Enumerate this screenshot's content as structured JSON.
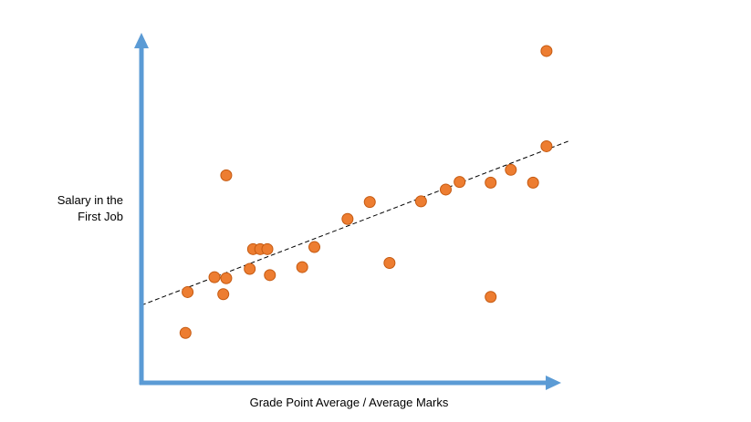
{
  "chart_data": {
    "type": "scatter",
    "title": "",
    "xlabel": "Grade Point Average / Average Marks",
    "ylabel_line1": "Salary in the",
    "ylabel_line2": "First Job",
    "ticks_shown": false,
    "grid": false,
    "legend": "none",
    "xlim": [
      0,
      100
    ],
    "ylim": [
      0,
      100
    ],
    "points": [
      {
        "x": 10.5,
        "y": 14.4
      },
      {
        "x": 11.0,
        "y": 26.2
      },
      {
        "x": 17.4,
        "y": 30.5
      },
      {
        "x": 19.5,
        "y": 25.6
      },
      {
        "x": 20.2,
        "y": 30.2
      },
      {
        "x": 20.2,
        "y": 59.9
      },
      {
        "x": 25.8,
        "y": 32.9
      },
      {
        "x": 26.6,
        "y": 38.6
      },
      {
        "x": 28.3,
        "y": 38.6
      },
      {
        "x": 30.0,
        "y": 38.6
      },
      {
        "x": 30.6,
        "y": 31.1
      },
      {
        "x": 38.3,
        "y": 33.4
      },
      {
        "x": 41.2,
        "y": 39.2
      },
      {
        "x": 49.1,
        "y": 47.3
      },
      {
        "x": 54.4,
        "y": 52.2
      },
      {
        "x": 59.1,
        "y": 34.6
      },
      {
        "x": 66.6,
        "y": 52.4
      },
      {
        "x": 72.5,
        "y": 55.8
      },
      {
        "x": 75.8,
        "y": 58.0
      },
      {
        "x": 83.2,
        "y": 57.8
      },
      {
        "x": 83.2,
        "y": 24.8
      },
      {
        "x": 88.0,
        "y": 61.5
      },
      {
        "x": 93.3,
        "y": 57.8
      },
      {
        "x": 96.5,
        "y": 68.3
      },
      {
        "x": 96.5,
        "y": 95.8
      }
    ],
    "trendline": {
      "style": "dashed",
      "x": [
        0,
        102
      ],
      "y": [
        22.4,
        69.9
      ]
    },
    "colors": {
      "axis": "#5B9BD5",
      "point_fill": "#ED7D31",
      "point_stroke": "#C55A11",
      "trendline": "#000000"
    }
  }
}
